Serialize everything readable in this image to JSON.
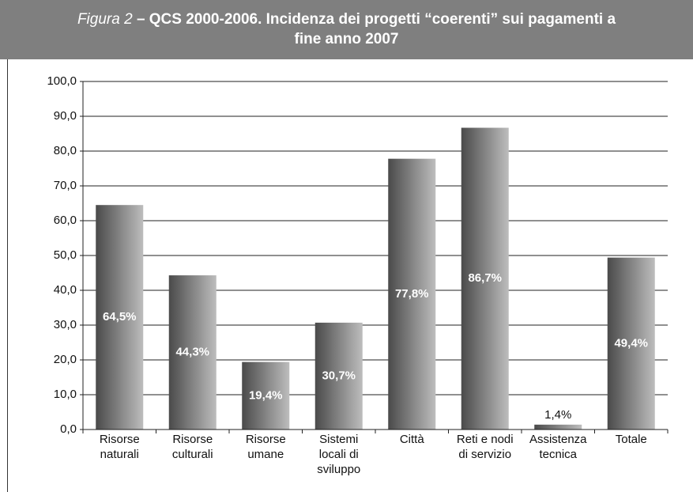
{
  "chart_data": {
    "type": "bar",
    "figure_label": "Figura 2",
    "title": "– QCS 2000-2006. Incidenza dei progetti “coerenti” sui pagamenti a fine anno 2007",
    "categories": [
      "Risorse naturali",
      "Risorse culturali",
      "Risorse umane",
      "Sistemi locali di sviluppo",
      "Città",
      "Reti e nodi di servizio",
      "Assistenza tecnica",
      "Totale"
    ],
    "values": [
      64.5,
      44.3,
      19.4,
      30.7,
      77.8,
      86.7,
      1.4,
      49.4
    ],
    "value_labels": [
      "64,5%",
      "44,3%",
      "19,4%",
      "30,7%",
      "77,8%",
      "86,7%",
      "1,4%",
      "49,4%"
    ],
    "ylim": [
      0,
      100
    ],
    "yticks": [
      {
        "value": 0,
        "label": "0,0"
      },
      {
        "value": 10,
        "label": "10,0"
      },
      {
        "value": 20,
        "label": "20,0"
      },
      {
        "value": 30,
        "label": "30,0"
      },
      {
        "value": 40,
        "label": "40,0"
      },
      {
        "value": 50,
        "label": "50,0"
      },
      {
        "value": 60,
        "label": "60,0"
      },
      {
        "value": 70,
        "label": "70,0"
      },
      {
        "value": 80,
        "label": "80,0"
      },
      {
        "value": 90,
        "label": "90,0"
      },
      {
        "value": 100,
        "label": "100,0"
      }
    ],
    "grid": true
  }
}
